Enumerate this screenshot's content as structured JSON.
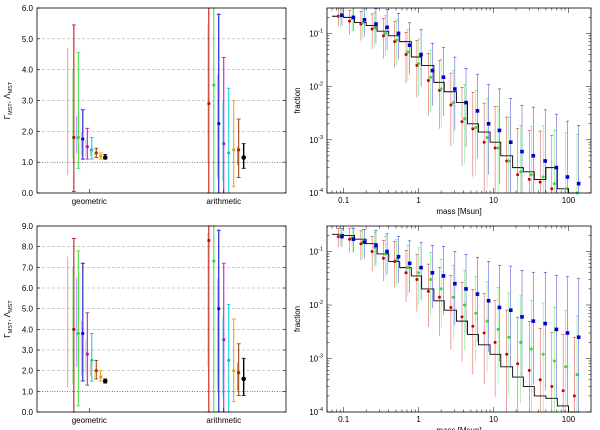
{
  "figure": {
    "colors": {
      "red": "#cc0000",
      "green": "#33dd33",
      "blue": "#0000cc",
      "magenta": "#cc00cc",
      "cyan": "#00cccc",
      "orange": "#ee9900",
      "brown": "#993300",
      "black": "#000000"
    }
  },
  "chart_data": [
    {
      "id": "top-left",
      "type": "errorbar",
      "ylabel_main": "Γ",
      "ylabel_sub": "MST",
      "ylabel_mid": ", Λ",
      "ylabel_sub2": "MST",
      "ylim": [
        0,
        6
      ],
      "yticks": [
        "0.0",
        "1.0",
        "2.0",
        "3.0",
        "4.0",
        "5.0",
        "6.0"
      ],
      "categories": [
        "geometric",
        "arithmetic"
      ],
      "reference_line": 1.0,
      "groups": [
        {
          "category": "geometric",
          "points": [
            {
              "series": "red",
              "x": 0.028,
              "y": 1.8,
              "lo": 0.05,
              "hi": 5.45,
              "xo": 0.02
            },
            {
              "series": "green",
              "x": 0.046,
              "y": 1.8,
              "lo": 0.8,
              "hi": 4.55,
              "xo": 0.02
            },
            {
              "series": "blue",
              "x": 0.064,
              "y": 1.75,
              "lo": 1.1,
              "hi": 2.7,
              "xo": 0.02
            },
            {
              "series": "magenta",
              "x": 0.082,
              "y": 1.5,
              "lo": 1.1,
              "hi": 2.1,
              "xo": 0.02
            },
            {
              "series": "cyan",
              "x": 0.1,
              "y": 1.4,
              "lo": 1.1,
              "hi": 1.8,
              "xo": 0.02
            },
            {
              "series": "brown",
              "x": 0.118,
              "y": 1.3,
              "lo": 1.15,
              "hi": 1.45,
              "xo": 0.02
            },
            {
              "series": "orange",
              "x": 0.136,
              "y": 1.2,
              "lo": 1.1,
              "hi": 1.3,
              "xo": 0.02
            },
            {
              "series": "black",
              "x": 0.154,
              "y": 1.15,
              "lo": 1.1,
              "hi": 1.25,
              "xo": 0.0
            }
          ]
        },
        {
          "category": "arithmetic",
          "points": [
            {
              "series": "red",
              "x": 0.03,
              "y": 2.9,
              "lo": 0.0,
              "hi": 6.0,
              "xo": 0.0
            },
            {
              "series": "green",
              "x": 0.05,
              "y": 3.5,
              "lo": 0.0,
              "hi": 6.0,
              "xo": 0.02
            },
            {
              "series": "blue",
              "x": 0.07,
              "y": 2.25,
              "lo": 0.0,
              "hi": 5.8,
              "xo": 0.0
            },
            {
              "series": "magenta",
              "x": 0.09,
              "y": 1.6,
              "lo": 0.0,
              "hi": 4.4,
              "xo": 0.02
            },
            {
              "series": "cyan",
              "x": 0.11,
              "y": 1.3,
              "lo": 0.0,
              "hi": 3.4,
              "xo": 0.02
            },
            {
              "series": "orange",
              "x": 0.13,
              "y": 1.4,
              "lo": 0.2,
              "hi": 3.0,
              "xo": 0.0
            },
            {
              "series": "brown",
              "x": 0.15,
              "y": 1.4,
              "lo": 0.5,
              "hi": 2.4,
              "xo": 0.0
            },
            {
              "series": "black",
              "x": 0.17,
              "y": 1.15,
              "lo": 0.8,
              "hi": 1.6,
              "xo": 0.02
            }
          ]
        }
      ]
    },
    {
      "id": "top-right",
      "type": "step+scatter",
      "xlabel": "mass [Msun]",
      "ylabel": "fraction",
      "xscale": "log",
      "yscale": "log",
      "xlim": [
        0.06,
        200
      ],
      "ylim": [
        0.0001,
        0.3
      ],
      "xticks": [
        "0.1",
        "1",
        "10",
        "100"
      ],
      "ytick_exps": [
        "-4",
        "-3",
        "-2",
        "-1"
      ],
      "step": {
        "edges": [
          0.07,
          0.1,
          0.14,
          0.2,
          0.28,
          0.4,
          0.56,
          0.8,
          1.1,
          1.6,
          2.2,
          3.2,
          4.5,
          6.3,
          9,
          12.5,
          18,
          25,
          35,
          50,
          71,
          100,
          140
        ],
        "values": [
          0.21,
          0.2,
          0.16,
          0.14,
          0.11,
          0.09,
          0.07,
          0.036,
          0.025,
          0.012,
          0.008,
          0.005,
          0.002,
          0.0014,
          0.0009,
          0.0005,
          0.0003,
          0.00025,
          0.00018,
          0.0003,
          0.00012,
          0.0001
        ]
      },
      "series": [
        {
          "name": "red",
          "points": [
            [
              0.085,
              0.21
            ],
            [
              0.12,
              0.17
            ],
            [
              0.17,
              0.15
            ],
            [
              0.24,
              0.12
            ],
            [
              0.34,
              0.09
            ],
            [
              0.48,
              0.07
            ],
            [
              0.68,
              0.04
            ],
            [
              0.95,
              0.025
            ],
            [
              1.35,
              0.013
            ],
            [
              1.9,
              0.0085
            ],
            [
              2.7,
              0.0045
            ],
            [
              3.8,
              0.0022
            ],
            [
              5.3,
              0.0016
            ],
            [
              7.5,
              0.0009
            ],
            [
              10.5,
              0.0007
            ],
            [
              15,
              0.0004
            ],
            [
              21,
              0.00022
            ],
            [
              30,
              0.00018
            ],
            [
              42,
              0.00016
            ],
            [
              60,
              0.00012
            ]
          ]
        },
        {
          "name": "green",
          "points": [
            [
              0.09,
              0.21
            ],
            [
              0.13,
              0.19
            ],
            [
              0.18,
              0.16
            ],
            [
              0.26,
              0.13
            ],
            [
              0.36,
              0.1
            ],
            [
              0.51,
              0.075
            ],
            [
              0.72,
              0.045
            ],
            [
              1.0,
              0.027
            ],
            [
              1.45,
              0.015
            ],
            [
              2.0,
              0.009
            ],
            [
              2.9,
              0.005
            ],
            [
              4.1,
              0.0025
            ],
            [
              5.8,
              0.0017
            ],
            [
              8.2,
              0.0011
            ],
            [
              11.5,
              0.0007
            ],
            [
              16,
              0.0004
            ],
            [
              23,
              0.00025
            ],
            [
              32,
              0.00022
            ],
            [
              46,
              0.0002
            ],
            [
              65,
              0.00015
            ],
            [
              92,
              0.00012
            ],
            [
              130,
              0.0001
            ]
          ]
        },
        {
          "name": "blue",
          "points": [
            [
              0.095,
              0.22
            ],
            [
              0.135,
              0.2
            ],
            [
              0.19,
              0.18
            ],
            [
              0.27,
              0.15
            ],
            [
              0.38,
              0.13
            ],
            [
              0.54,
              0.1
            ],
            [
              0.76,
              0.06
            ],
            [
              1.08,
              0.04
            ],
            [
              1.53,
              0.02
            ],
            [
              2.15,
              0.015
            ],
            [
              3.05,
              0.009
            ],
            [
              4.3,
              0.005
            ],
            [
              6.1,
              0.0035
            ],
            [
              8.6,
              0.002
            ],
            [
              12,
              0.0015
            ],
            [
              17,
              0.0009
            ],
            [
              24,
              0.0006
            ],
            [
              34,
              0.0005
            ],
            [
              49,
              0.0004
            ],
            [
              69,
              0.0003
            ],
            [
              97,
              0.0002
            ],
            [
              137,
              0.00015
            ]
          ]
        }
      ]
    },
    {
      "id": "bottom-left",
      "type": "errorbar",
      "ylabel_main": "Γ",
      "ylabel_sub": "MST",
      "ylabel_mid": ", Λ",
      "ylabel_sub2": "MST",
      "ylim": [
        0,
        9
      ],
      "yticks": [
        "0.0",
        "1.0",
        "2.0",
        "3.0",
        "4.0",
        "5.0",
        "6.0",
        "7.0",
        "8.0",
        "9.0"
      ],
      "categories": [
        "geometric",
        "arithmetic"
      ],
      "reference_line": 1.0,
      "groups": [
        {
          "category": "geometric",
          "points": [
            {
              "series": "red",
              "x": 0.028,
              "y": 4.0,
              "lo": 0.0,
              "hi": 8.4,
              "xo": 0.02
            },
            {
              "series": "green",
              "x": 0.046,
              "y": 3.8,
              "lo": 0.3,
              "hi": 7.8,
              "xo": 0.02
            },
            {
              "series": "blue",
              "x": 0.064,
              "y": 3.8,
              "lo": 1.5,
              "hi": 7.2,
              "xo": 0.02
            },
            {
              "series": "magenta",
              "x": 0.082,
              "y": 2.8,
              "lo": 1.3,
              "hi": 4.8,
              "xo": 0.02
            },
            {
              "series": "cyan",
              "x": 0.1,
              "y": 2.5,
              "lo": 1.5,
              "hi": 3.8,
              "xo": 0.02
            },
            {
              "series": "brown",
              "x": 0.118,
              "y": 2.0,
              "lo": 1.6,
              "hi": 2.5,
              "xo": 0.02
            },
            {
              "series": "orange",
              "x": 0.136,
              "y": 1.7,
              "lo": 1.5,
              "hi": 2.0,
              "xo": 0.02
            },
            {
              "series": "black",
              "x": 0.154,
              "y": 1.5,
              "lo": 1.4,
              "hi": 1.6,
              "xo": 0.0
            }
          ]
        },
        {
          "category": "arithmetic",
          "points": [
            {
              "series": "red",
              "x": 0.03,
              "y": 8.3,
              "lo": 0.0,
              "hi": 9.0,
              "xo": 0.0
            },
            {
              "series": "green",
              "x": 0.05,
              "y": 7.3,
              "lo": 0.0,
              "hi": 9.0,
              "xo": 0.02
            },
            {
              "series": "blue",
              "x": 0.07,
              "y": 5.0,
              "lo": 0.0,
              "hi": 8.8,
              "xo": 0.0
            },
            {
              "series": "magenta",
              "x": 0.09,
              "y": 3.5,
              "lo": 0.0,
              "hi": 7.2,
              "xo": 0.02
            },
            {
              "series": "cyan",
              "x": 0.11,
              "y": 2.5,
              "lo": 0.0,
              "hi": 5.2,
              "xo": 0.02
            },
            {
              "series": "orange",
              "x": 0.13,
              "y": 2.0,
              "lo": 0.5,
              "hi": 4.5,
              "xo": 0.0
            },
            {
              "series": "brown",
              "x": 0.15,
              "y": 1.9,
              "lo": 0.8,
              "hi": 3.3,
              "xo": 0.0
            },
            {
              "series": "black",
              "x": 0.17,
              "y": 1.6,
              "lo": 0.8,
              "hi": 2.6,
              "xo": 0.02
            }
          ]
        }
      ]
    },
    {
      "id": "bottom-right",
      "type": "step+scatter",
      "xlabel": "mass [Msun]",
      "ylabel": "fraction",
      "xscale": "log",
      "yscale": "log",
      "xlim": [
        0.06,
        200
      ],
      "ylim": [
        0.0001,
        0.3
      ],
      "xticks": [
        "0.1",
        "1",
        "10",
        "100"
      ],
      "ytick_exps": [
        "-4",
        "-3",
        "-2",
        "-1"
      ],
      "step": {
        "edges": [
          0.07,
          0.1,
          0.14,
          0.2,
          0.28,
          0.4,
          0.56,
          0.8,
          1.1,
          1.6,
          2.2,
          3.2,
          4.5,
          6.3,
          9,
          12.5,
          18,
          25,
          35,
          50,
          71,
          100,
          140
        ],
        "values": [
          0.21,
          0.2,
          0.17,
          0.14,
          0.09,
          0.065,
          0.05,
          0.035,
          0.02,
          0.012,
          0.008,
          0.005,
          0.0028,
          0.0018,
          0.0012,
          0.0007,
          0.00045,
          0.0003,
          0.0002,
          0.00018,
          0.00013,
          0.0001
        ]
      },
      "series": [
        {
          "name": "red",
          "points": [
            [
              0.085,
              0.19
            ],
            [
              0.12,
              0.17
            ],
            [
              0.17,
              0.14
            ],
            [
              0.24,
              0.1
            ],
            [
              0.34,
              0.075
            ],
            [
              0.48,
              0.065
            ],
            [
              0.68,
              0.04
            ],
            [
              0.95,
              0.03
            ],
            [
              1.35,
              0.018
            ],
            [
              1.9,
              0.014
            ],
            [
              2.7,
              0.009
            ],
            [
              3.8,
              0.006
            ],
            [
              5.3,
              0.004
            ],
            [
              7.5,
              0.003
            ],
            [
              10.5,
              0.002
            ],
            [
              15,
              0.0012
            ],
            [
              21,
              0.0008
            ],
            [
              30,
              0.0006
            ],
            [
              42,
              0.0004
            ],
            [
              60,
              0.0003
            ],
            [
              85,
              0.00025
            ],
            [
              120,
              0.0002
            ]
          ]
        },
        {
          "name": "green",
          "points": [
            [
              0.09,
              0.2
            ],
            [
              0.13,
              0.18
            ],
            [
              0.18,
              0.15
            ],
            [
              0.26,
              0.12
            ],
            [
              0.36,
              0.09
            ],
            [
              0.51,
              0.07
            ],
            [
              0.72,
              0.05
            ],
            [
              1.0,
              0.04
            ],
            [
              1.45,
              0.03
            ],
            [
              2.0,
              0.02
            ],
            [
              2.9,
              0.014
            ],
            [
              4.1,
              0.01
            ],
            [
              5.8,
              0.007
            ],
            [
              8.2,
              0.005
            ],
            [
              11.5,
              0.0035
            ],
            [
              16,
              0.0025
            ],
            [
              23,
              0.002
            ],
            [
              32,
              0.0015
            ],
            [
              46,
              0.0012
            ],
            [
              65,
              0.0009
            ],
            [
              92,
              0.0007
            ],
            [
              130,
              0.0005
            ]
          ]
        },
        {
          "name": "blue",
          "points": [
            [
              0.095,
              0.19
            ],
            [
              0.135,
              0.17
            ],
            [
              0.19,
              0.15
            ],
            [
              0.27,
              0.13
            ],
            [
              0.38,
              0.1
            ],
            [
              0.54,
              0.08
            ],
            [
              0.76,
              0.06
            ],
            [
              1.08,
              0.05
            ],
            [
              1.53,
              0.04
            ],
            [
              2.15,
              0.035
            ],
            [
              3.05,
              0.025
            ],
            [
              4.3,
              0.02
            ],
            [
              6.1,
              0.016
            ],
            [
              8.6,
              0.012
            ],
            [
              12,
              0.009
            ],
            [
              17,
              0.008
            ],
            [
              24,
              0.006
            ],
            [
              34,
              0.005
            ],
            [
              49,
              0.0045
            ],
            [
              69,
              0.0035
            ],
            [
              97,
              0.003
            ],
            [
              137,
              0.0025
            ]
          ]
        }
      ]
    }
  ]
}
